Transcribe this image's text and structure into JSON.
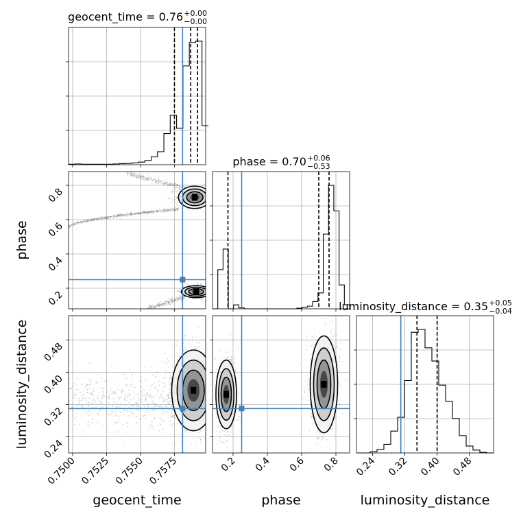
{
  "chart_data": {
    "type": "corner",
    "parameters": [
      "geocent_time",
      "phase",
      "luminosity_distance"
    ],
    "truths": {
      "geocent_time": 0.7581,
      "phase": 0.25,
      "luminosity_distance": 0.31
    },
    "colors": {
      "truth": "#4682b4",
      "hist": "#000000",
      "grid": "#b0b0b0",
      "scatter": "#555555"
    },
    "titles": [
      {
        "param": "geocent_time",
        "base": "geocent_time = 0.76",
        "plus": "+0.00",
        "minus": "−0.00"
      },
      {
        "param": "phase",
        "base": "phase = 0.70",
        "plus": "+0.06",
        "minus": "−0.53"
      },
      {
        "param": "luminosity_distance",
        "base": "luminosity_distance = 0.35",
        "plus": "+0.05",
        "minus": "−0.04"
      }
    ],
    "axis_labels": {
      "geocent_time": "geocent_time",
      "phase": "phase",
      "luminosity_distance": "luminosity_distance"
    },
    "ticks": {
      "geocent_time": [
        "0.7500",
        "0.7525",
        "0.7550",
        "0.7575"
      ],
      "phase": [
        "0.2",
        "0.4",
        "0.6",
        "0.8"
      ],
      "luminosity_distance": [
        "0.24",
        "0.32",
        "0.40",
        "0.48"
      ]
    },
    "ranges": {
      "geocent_time": [
        0.7497,
        0.7598
      ],
      "phase": [
        0.08,
        0.88
      ],
      "luminosity_distance": [
        0.2,
        0.54
      ]
    },
    "histograms": {
      "geocent_time": {
        "edges": [
          0.7497,
          0.76
        ],
        "counts": [
          2,
          3,
          2,
          2,
          2,
          2,
          2,
          3,
          4,
          5,
          7,
          10,
          16,
          30,
          50,
          120,
          190,
          140,
          380,
          470,
          475,
          150
        ]
      },
      "phase": {
        "edges": [
          0.08,
          0.88
        ],
        "counts": [
          0,
          118,
          180,
          0,
          12,
          3,
          0,
          0,
          0,
          0,
          0,
          0,
          0,
          0,
          0,
          0,
          2,
          5,
          8,
          22,
          48,
          225,
          372,
          295,
          72,
          12
        ]
      },
      "luminosity_distance": {
        "edges": [
          0.2,
          0.54
        ],
        "counts": [
          0,
          0,
          2,
          6,
          15,
          38,
          62,
          126,
          210,
          215,
          183,
          160,
          118,
          90,
          60,
          30,
          12,
          5,
          1,
          0
        ]
      }
    },
    "quantiles": {
      "geocent_time": [
        0.7575,
        0.7587,
        0.7592
      ],
      "phase": [
        0.17,
        0.7,
        0.76
      ],
      "luminosity_distance": [
        0.31,
        0.35,
        0.4
      ]
    }
  }
}
